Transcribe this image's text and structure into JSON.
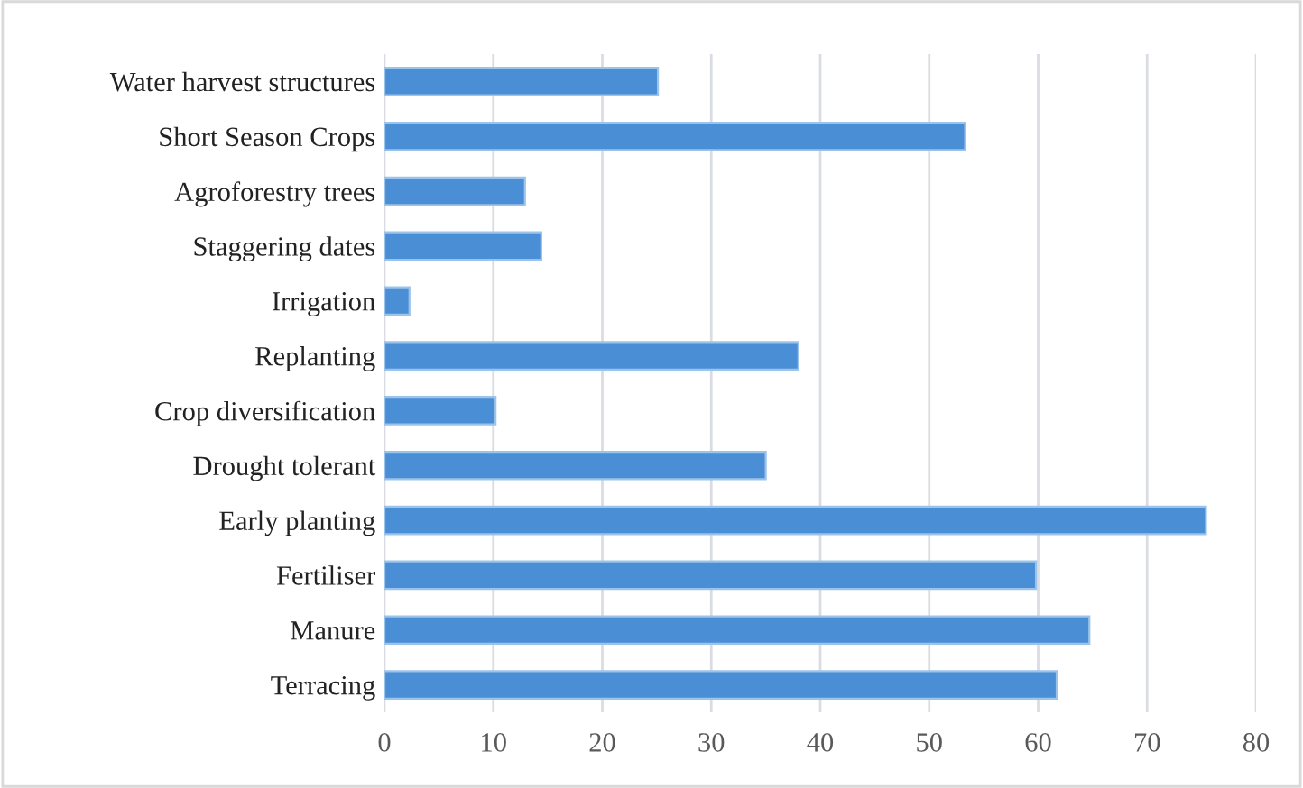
{
  "chart_data": {
    "type": "bar",
    "orientation": "horizontal",
    "categories": [
      "Water harvest structures",
      "Short Season Crops",
      "Agroforestry trees",
      "Staggering dates",
      "Irrigation",
      "Replanting",
      "Crop diversification",
      "Drought tolerant",
      "Early planting",
      "Fertiliser",
      "Manure",
      "Terracing"
    ],
    "values": [
      25.1,
      53.3,
      12.9,
      14.4,
      2.3,
      38.0,
      10.2,
      35.0,
      75.4,
      59.8,
      64.7,
      61.7
    ],
    "color": "#4a8fd6",
    "xlim": [
      0,
      80
    ],
    "xticks": [
      0,
      10,
      20,
      30,
      40,
      50,
      60,
      70,
      80
    ],
    "grid": "x"
  }
}
